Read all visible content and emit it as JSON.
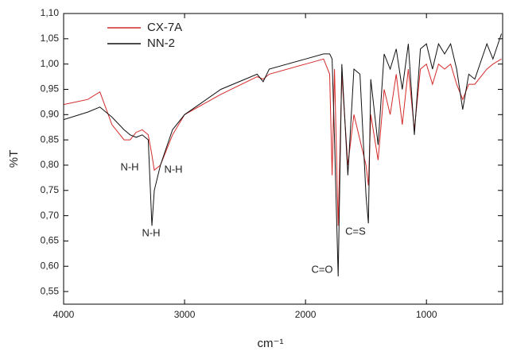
{
  "chart_data": {
    "type": "line",
    "xlabel": "cm⁻¹",
    "ylabel": "%T",
    "x": [
      4000,
      3800,
      3700,
      3600,
      3500,
      3450,
      3400,
      3350,
      3300,
      3270,
      3250,
      3200,
      3100,
      3000,
      2700,
      2400,
      2350,
      2300,
      2000,
      1850,
      1800,
      1780,
      1760,
      1730,
      1700,
      1650,
      1600,
      1550,
      1500,
      1480,
      1460,
      1400,
      1350,
      1300,
      1250,
      1200,
      1150,
      1100,
      1050,
      1000,
      950,
      900,
      850,
      800,
      750,
      700,
      650,
      600,
      500,
      450,
      380
    ],
    "series": [
      {
        "name": "CX-7A",
        "color": "#d42a2a",
        "values": [
          0.92,
          0.93,
          0.945,
          0.88,
          0.85,
          0.85,
          0.865,
          0.87,
          0.86,
          0.82,
          0.79,
          0.8,
          0.86,
          0.9,
          0.94,
          0.975,
          0.97,
          0.98,
          1.0,
          1.01,
          0.98,
          0.78,
          0.99,
          0.68,
          0.98,
          0.8,
          0.9,
          0.85,
          0.8,
          0.76,
          0.9,
          0.81,
          0.95,
          0.9,
          0.98,
          0.88,
          0.99,
          0.87,
          0.99,
          1.0,
          0.96,
          1.0,
          0.99,
          1.0,
          0.96,
          0.93,
          0.96,
          0.96,
          0.99,
          1.0,
          1.01
        ]
      },
      {
        "name": "NN-2",
        "color": "#111111",
        "values": [
          0.89,
          0.905,
          0.915,
          0.895,
          0.87,
          0.86,
          0.855,
          0.86,
          0.85,
          0.68,
          0.75,
          0.8,
          0.87,
          0.9,
          0.95,
          0.98,
          0.965,
          0.99,
          1.01,
          1.02,
          1.02,
          1.01,
          0.85,
          0.58,
          1.0,
          0.78,
          0.99,
          0.98,
          0.74,
          0.685,
          0.97,
          0.84,
          1.02,
          0.99,
          1.03,
          0.95,
          1.04,
          0.86,
          1.03,
          1.04,
          0.99,
          1.04,
          1.02,
          1.04,
          0.99,
          0.91,
          0.98,
          0.97,
          1.04,
          1.01,
          1.06
        ]
      }
    ],
    "xlim": [
      4000,
      370
    ],
    "xticks": [
      4000,
      3000,
      2000,
      1000
    ],
    "ylim": [
      0.525,
      1.1
    ],
    "yticks": [
      {
        "value": 0.55,
        "label": "0,55"
      },
      {
        "value": 0.6,
        "label": "0,60"
      },
      {
        "value": 0.65,
        "label": "0,65"
      },
      {
        "value": 0.7,
        "label": "0,70"
      },
      {
        "value": 0.75,
        "label": "0,75"
      },
      {
        "value": 0.8,
        "label": "0,80"
      },
      {
        "value": 0.85,
        "label": "0,85"
      },
      {
        "value": 0.9,
        "label": "0,90"
      },
      {
        "value": 0.95,
        "label": "0,95"
      },
      {
        "value": 1.0,
        "label": "1,00"
      },
      {
        "value": 1.05,
        "label": "1,05"
      },
      {
        "value": 1.1,
        "label": "1,10"
      }
    ],
    "legend": "upper left",
    "annotations": [
      "N-H",
      "N-H",
      "N-H",
      "C=O",
      "C=S"
    ]
  }
}
